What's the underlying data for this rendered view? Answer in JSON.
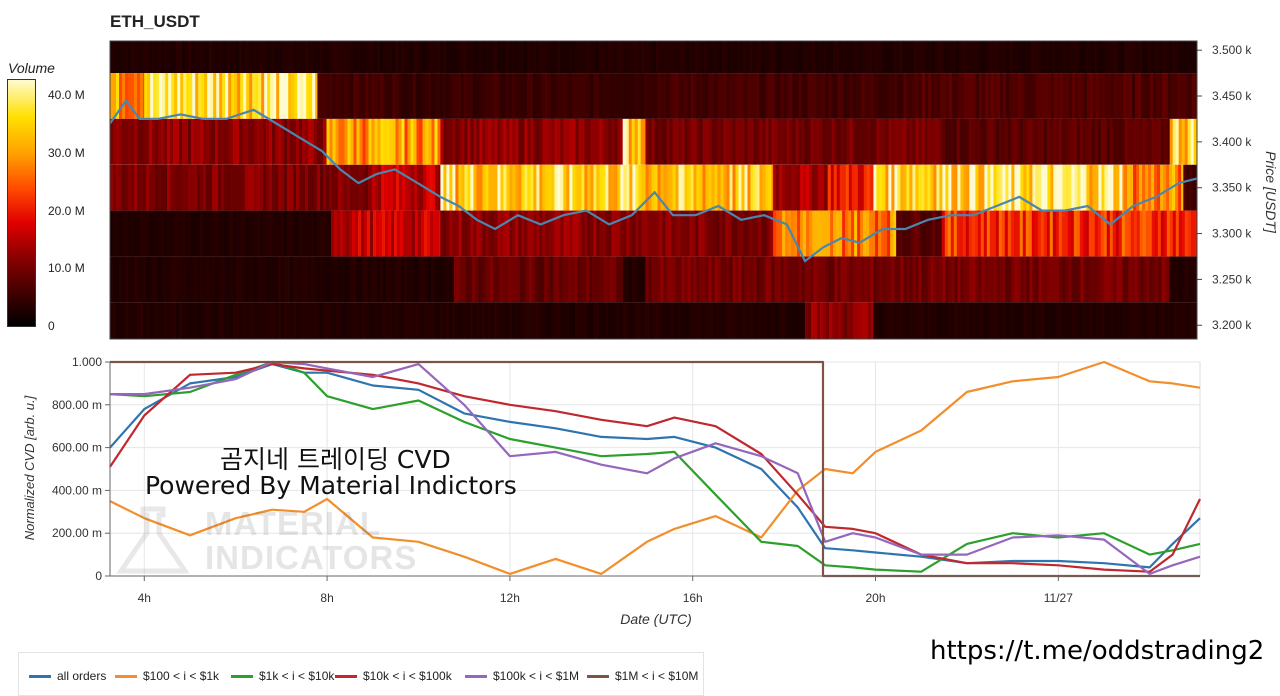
{
  "title": "ETH_USDT",
  "overlay": {
    "line1": "곰지네 트레이딩 CVD",
    "line2": "Powered By Material Indictors",
    "url": "https://t.me/oddstrading2",
    "watermark_line1": "MATERIAL",
    "watermark_line2": "INDICATORS"
  },
  "chart_data": [
    {
      "type": "heatmap",
      "title": "ETH_USDT",
      "ylabel": "Price [USDT]",
      "ylim": [
        3185,
        3510
      ],
      "y_ticks": [
        "3.500 k",
        "3.450 k",
        "3.400 k",
        "3.350 k",
        "3.300 k",
        "3.250 k",
        "3.200 k"
      ],
      "y_tick_values": [
        3500,
        3450,
        3400,
        3350,
        3300,
        3250,
        3200
      ],
      "x_range_hours": [
        3.25,
        27.1
      ],
      "colorbar": {
        "title": "Volume",
        "ticks": [
          "40.0 M",
          "30.0 M",
          "20.0 M",
          "10.0 M",
          "0"
        ],
        "tick_values": [
          40,
          30,
          20,
          10,
          0
        ],
        "max": 43
      },
      "price_bands": [
        {
          "low": 3475,
          "high": 3510,
          "segments": [
            [
              3.25,
              27.1,
              3
            ]
          ]
        },
        {
          "low": 3425,
          "high": 3475,
          "segments": [
            [
              3.25,
              4.0,
              30
            ],
            [
              4.0,
              7.8,
              38
            ],
            [
              7.8,
              9.5,
              6
            ],
            [
              9.5,
              15.0,
              5
            ],
            [
              15.0,
              21.0,
              6
            ],
            [
              21.0,
              27.1,
              7
            ]
          ]
        },
        {
          "low": 3375,
          "high": 3425,
          "segments": [
            [
              3.25,
              8.0,
              12
            ],
            [
              8.0,
              10.5,
              30
            ],
            [
              10.5,
              14.5,
              12
            ],
            [
              14.5,
              15.0,
              36
            ],
            [
              15.0,
              21.5,
              10
            ],
            [
              21.5,
              26.5,
              8
            ],
            [
              26.5,
              27.1,
              36
            ]
          ]
        },
        {
          "low": 3325,
          "high": 3375,
          "segments": [
            [
              3.25,
              9.0,
              11
            ],
            [
              9.0,
              10.5,
              16
            ],
            [
              10.5,
              15.0,
              36
            ],
            [
              15.0,
              17.8,
              34
            ],
            [
              17.8,
              19.0,
              14
            ],
            [
              19.0,
              20.0,
              20
            ],
            [
              20.0,
              25.5,
              38
            ],
            [
              25.5,
              26.8,
              28
            ],
            [
              26.8,
              27.1,
              6
            ]
          ]
        },
        {
          "low": 3275,
          "high": 3325,
          "segments": [
            [
              3.25,
              8.1,
              3
            ],
            [
              8.1,
              10.5,
              16
            ],
            [
              10.5,
              15.5,
              12
            ],
            [
              15.5,
              17.8,
              11
            ],
            [
              17.8,
              20.5,
              28
            ],
            [
              20.5,
              21.5,
              8
            ],
            [
              21.5,
              26.7,
              22
            ],
            [
              26.7,
              27.1,
              20
            ]
          ]
        },
        {
          "low": 3225,
          "high": 3275,
          "segments": [
            [
              3.25,
              10.8,
              3
            ],
            [
              10.8,
              14.5,
              9
            ],
            [
              14.5,
              15.0,
              3
            ],
            [
              15.0,
              26.5,
              10
            ],
            [
              26.5,
              27.1,
              3
            ]
          ]
        },
        {
          "low": 3185,
          "high": 3225,
          "segments": [
            [
              3.25,
              18.5,
              3
            ],
            [
              18.5,
              20.0,
              12
            ],
            [
              20.0,
              27.1,
              3
            ]
          ]
        }
      ],
      "price_series": {
        "x": [
          3.25,
          3.6,
          3.9,
          4.3,
          4.8,
          5.3,
          5.8,
          6.4,
          6.9,
          7.4,
          7.9,
          8.3,
          8.7,
          9.1,
          9.5,
          10.0,
          10.5,
          10.9,
          11.3,
          11.7,
          12.2,
          12.7,
          13.2,
          13.7,
          14.2,
          14.7,
          15.2,
          15.6,
          16.1,
          16.6,
          17.1,
          17.6,
          18.1,
          18.5,
          18.9,
          19.3,
          19.7,
          20.2,
          20.7,
          21.2,
          21.7,
          22.2,
          22.7,
          23.2,
          23.7,
          24.2,
          24.7,
          25.2,
          25.7,
          26.2,
          26.7,
          27.1
        ],
        "y": [
          3420,
          3445,
          3425,
          3425,
          3430,
          3425,
          3425,
          3435,
          3420,
          3405,
          3390,
          3370,
          3355,
          3365,
          3370,
          3355,
          3340,
          3330,
          3315,
          3305,
          3320,
          3310,
          3320,
          3325,
          3310,
          3320,
          3345,
          3320,
          3320,
          3330,
          3315,
          3320,
          3310,
          3270,
          3285,
          3295,
          3290,
          3305,
          3305,
          3315,
          3320,
          3320,
          3330,
          3340,
          3325,
          3325,
          3330,
          3310,
          3330,
          3340,
          3355,
          3360
        ]
      }
    },
    {
      "type": "line",
      "xlabel": "Date (UTC)",
      "ylabel": "Normalized CVD [arb. u.]",
      "ylim": [
        0,
        1.0
      ],
      "x_range_hours": [
        3.25,
        27.1
      ],
      "x_ticks": [
        "4h",
        "8h",
        "12h",
        "16h",
        "20h",
        "11/27"
      ],
      "x_tick_values": [
        4,
        8,
        12,
        16,
        20,
        24
      ],
      "y_ticks": [
        "1.000",
        "800.00 m",
        "600.00 m",
        "400.00 m",
        "200.00 m",
        "0"
      ],
      "y_tick_values": [
        1.0,
        0.8,
        0.6,
        0.4,
        0.2,
        0
      ],
      "legend_position": "bottom",
      "x": [
        3.25,
        4,
        5,
        6,
        6.8,
        7.5,
        8,
        9,
        10,
        11,
        12,
        13,
        14,
        15,
        15.6,
        16.5,
        17.5,
        18.3,
        18.9,
        19.5,
        20,
        21,
        22,
        23,
        24,
        25,
        26,
        26.5,
        27.1
      ],
      "series": [
        {
          "name": "all orders",
          "color": "#2e75b0",
          "values": [
            0.6,
            0.78,
            0.9,
            0.93,
            0.99,
            0.95,
            0.95,
            0.89,
            0.87,
            0.76,
            0.72,
            0.69,
            0.65,
            0.64,
            0.65,
            0.6,
            0.5,
            0.32,
            0.13,
            0.12,
            0.11,
            0.09,
            0.06,
            0.07,
            0.07,
            0.06,
            0.04,
            0.15,
            0.27
          ]
        },
        {
          "name": "$100 < i < $1k",
          "color": "#f28e2b",
          "values": [
            0.35,
            0.27,
            0.19,
            0.27,
            0.31,
            0.3,
            0.36,
            0.18,
            0.16,
            0.09,
            0.01,
            0.08,
            0.01,
            0.16,
            0.22,
            0.28,
            0.18,
            0.4,
            0.5,
            0.48,
            0.58,
            0.68,
            0.86,
            0.91,
            0.93,
            1.0,
            0.91,
            0.9,
            0.88
          ]
        },
        {
          "name": "$1k < i < $10k",
          "color": "#2ca02c",
          "values": [
            0.85,
            0.84,
            0.86,
            0.94,
            1.0,
            0.95,
            0.84,
            0.78,
            0.82,
            0.72,
            0.64,
            0.6,
            0.56,
            0.57,
            0.58,
            0.38,
            0.16,
            0.14,
            0.05,
            0.04,
            0.03,
            0.02,
            0.15,
            0.2,
            0.18,
            0.2,
            0.1,
            0.12,
            0.15
          ]
        },
        {
          "name": "$10k < i < $100k",
          "color": "#c0282d",
          "values": [
            0.51,
            0.75,
            0.94,
            0.95,
            0.99,
            0.97,
            0.96,
            0.94,
            0.9,
            0.84,
            0.8,
            0.77,
            0.73,
            0.7,
            0.74,
            0.7,
            0.57,
            0.38,
            0.23,
            0.22,
            0.2,
            0.1,
            0.06,
            0.06,
            0.05,
            0.03,
            0.02,
            0.1,
            0.36
          ]
        },
        {
          "name": "$100k < i < $1M",
          "color": "#9467bd",
          "values": [
            0.85,
            0.85,
            0.88,
            0.92,
            1.0,
            0.99,
            0.97,
            0.93,
            0.99,
            0.8,
            0.56,
            0.58,
            0.52,
            0.48,
            0.55,
            0.62,
            0.56,
            0.48,
            0.16,
            0.2,
            0.18,
            0.1,
            0.1,
            0.18,
            0.19,
            0.17,
            0.01,
            0.05,
            0.09
          ]
        },
        {
          "name": "$1M < i < $10M",
          "color": "#7f5249",
          "values": [
            1.0,
            1.0,
            1.0,
            1.0,
            1.0,
            1.0,
            1.0,
            1.0,
            1.0,
            1.0,
            1.0,
            1.0,
            1.0,
            1.0,
            1.0,
            1.0,
            1.0,
            1.0,
            0.0,
            0.0,
            0.0,
            0.0,
            0.0,
            0.0,
            0.0,
            0.0,
            0.0,
            0.0,
            0.0
          ]
        }
      ]
    }
  ]
}
